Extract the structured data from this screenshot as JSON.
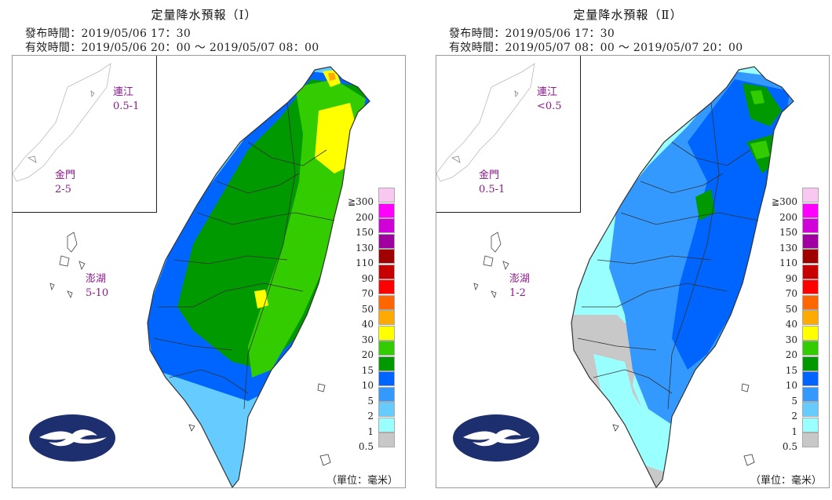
{
  "panels": [
    {
      "title": "定量降水預報（Ⅰ）",
      "issued": "發布時間：2019/05/06 17：30",
      "valid": "有效時間：2019/05/06 20：00 〜 2019/05/07 08：00",
      "islands": {
        "matsu": {
          "name": "連江",
          "range": "0.5-1"
        },
        "kinmen": {
          "name": "金門",
          "range": "2-5"
        },
        "penghu": {
          "name": "澎湖",
          "range": "5-10"
        }
      }
    },
    {
      "title": "定量降水預報（Ⅱ）",
      "issued": "發布時間：2019/05/06 17：30",
      "valid": "有效時間：2019/05/07 08：00 〜 2019/05/07 20：00",
      "islands": {
        "matsu": {
          "name": "連江",
          "range": "<0.5"
        },
        "kinmen": {
          "name": "金門",
          "range": "0.5-1"
        },
        "penghu": {
          "name": "澎湖",
          "range": "1-2"
        }
      }
    }
  ],
  "legend": {
    "unit": "（單位：毫米）",
    "ticks": [
      "≧300",
      "200",
      "150",
      "130",
      "110",
      "90",
      "70",
      "50",
      "40",
      "30",
      "20",
      "15",
      "10",
      "5",
      "2",
      "1",
      "0.5"
    ],
    "colors": [
      "#f8c8f0",
      "#ff00ff",
      "#d000d8",
      "#a000a0",
      "#a00000",
      "#c80000",
      "#ff0000",
      "#ff6600",
      "#ffaa00",
      "#ffff00",
      "#33cc00",
      "#009900",
      "#0064ff",
      "#3399ff",
      "#66ccff",
      "#99ffff",
      "#c8c8c8"
    ]
  }
}
